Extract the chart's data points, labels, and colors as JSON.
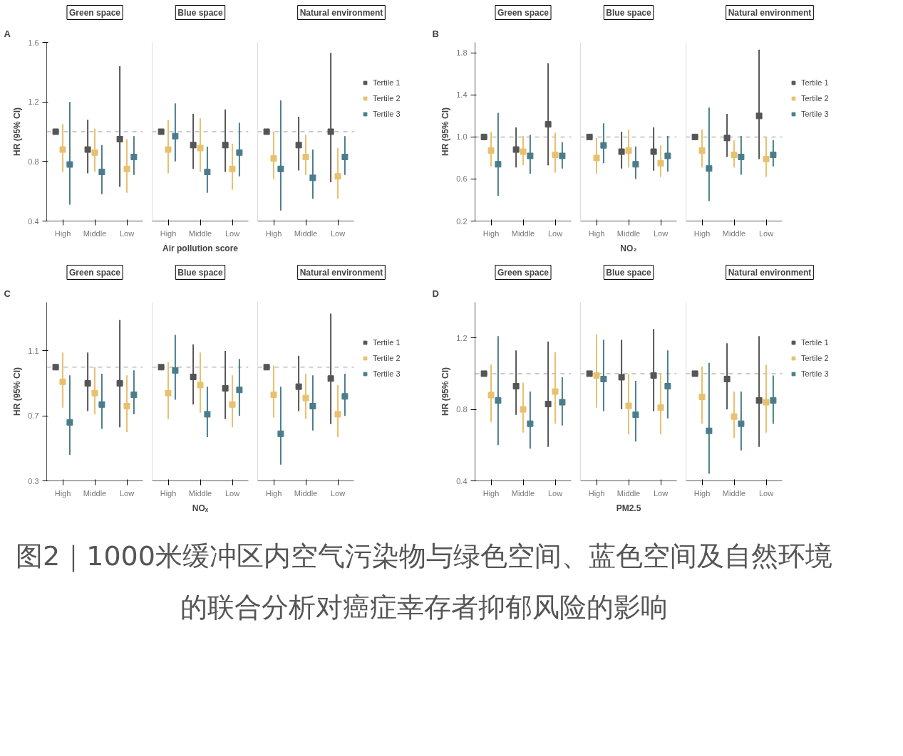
{
  "chart_data": [
    {
      "type": "scatter",
      "title": "Green space",
      "ylabel": "HR (95% CI)",
      "annotations": [
        "A"
      ],
      "categories": [
        "High",
        "Middle",
        "Low"
      ],
      "marker": "square",
      "grid": false,
      "ylim": [
        0.4,
        1.6
      ],
      "yticks": [
        0.4,
        0.8,
        1.2,
        1.6
      ],
      "ref_lines": [
        {
          "axis": "y",
          "value": 1,
          "color": "#bbbbbb",
          "line_style": "dashed"
        }
      ],
      "series": [
        {
          "color": "#555555",
          "values": [
            1.0,
            0.88,
            0.95
          ],
          "errors": [
            null,
            [
              0.72,
              1.08
            ],
            [
              0.63,
              1.44
            ]
          ]
        },
        {
          "color": "#e8c16f",
          "values": [
            0.88,
            0.86,
            0.75
          ],
          "errors": [
            [
              0.73,
              1.05
            ],
            [
              0.73,
              1.02
            ],
            [
              0.59,
              0.95
            ]
          ]
        },
        {
          "color": "#4a7d8c",
          "values": [
            0.78,
            0.73,
            0.83
          ],
          "errors": [
            [
              0.51,
              1.2
            ],
            [
              0.58,
              0.91
            ],
            [
              0.71,
              0.97
            ]
          ]
        }
      ]
    },
    {
      "type": "scatter",
      "title": "Blue space",
      "xlabel": "Air pollution score",
      "categories": [
        "High",
        "Middle",
        "Low"
      ],
      "marker": "square",
      "grid": false,
      "tick_labels": "x",
      "ylim": [
        0.4,
        1.6
      ],
      "ref_lines": [
        {
          "axis": "y",
          "value": 1,
          "color": "#bbbbbb",
          "line_style": "dashed"
        }
      ],
      "series": [
        {
          "color": "#555555",
          "values": [
            1.0,
            0.91,
            0.91
          ],
          "errors": [
            null,
            [
              0.75,
              1.12
            ],
            [
              0.73,
              1.15
            ]
          ]
        },
        {
          "color": "#e8c16f",
          "values": [
            0.88,
            0.89,
            0.75
          ],
          "errors": [
            [
              0.72,
              1.08
            ],
            [
              0.73,
              1.09
            ],
            [
              0.61,
              0.92
            ]
          ]
        },
        {
          "color": "#4a7d8c",
          "values": [
            0.97,
            0.73,
            0.86
          ],
          "errors": [
            [
              0.8,
              1.19
            ],
            [
              0.59,
              0.9
            ],
            [
              0.7,
              1.06
            ]
          ]
        }
      ]
    },
    {
      "type": "scatter",
      "title": "Natural environment",
      "categories": [
        "High",
        "Middle",
        "Low"
      ],
      "marker": "square",
      "grid": false,
      "tick_labels": "x",
      "legend": "right",
      "ylim": [
        0.4,
        1.6
      ],
      "ref_lines": [
        {
          "axis": "y",
          "value": 1,
          "color": "#bbbbbb",
          "line_style": "dashed"
        }
      ],
      "series": [
        {
          "name": "Tertile 1",
          "color": "#555555",
          "values": [
            1.0,
            0.91,
            1.0
          ],
          "errors": [
            null,
            [
              0.74,
              1.1
            ],
            [
              0.66,
              1.53
            ]
          ]
        },
        {
          "name": "Tertile 2",
          "color": "#e8c16f",
          "values": [
            0.82,
            0.83,
            0.7
          ],
          "errors": [
            [
              0.68,
              1.0
            ],
            [
              0.71,
              0.98
            ],
            [
              0.55,
              0.89
            ]
          ]
        },
        {
          "name": "Tertile 3",
          "color": "#4a7d8c",
          "values": [
            0.75,
            0.69,
            0.83
          ],
          "errors": [
            [
              0.47,
              1.21
            ],
            [
              0.55,
              0.88
            ],
            [
              0.71,
              0.97
            ]
          ]
        }
      ]
    },
    {
      "type": "scatter",
      "title": "Green space",
      "ylabel": "HR (95% CI)",
      "annotations": [
        "B"
      ],
      "categories": [
        "High",
        "Middle",
        "Low"
      ],
      "marker": "square",
      "grid": false,
      "ylim": [
        0.2,
        1.9
      ],
      "yticks": [
        0.2,
        0.6,
        {
          "value": 1,
          "label": "1.0"
        },
        1.4,
        1.8
      ],
      "ref_lines": [
        {
          "axis": "y",
          "value": 1,
          "color": "#bbbbbb",
          "line_style": "dashed"
        }
      ],
      "series": [
        {
          "color": "#555555",
          "values": [
            1.0,
            0.88,
            1.12
          ],
          "errors": [
            null,
            [
              0.71,
              1.09
            ],
            [
              0.73,
              1.7
            ]
          ]
        },
        {
          "color": "#e8c16f",
          "values": [
            0.87,
            0.86,
            0.83
          ],
          "errors": [
            [
              0.72,
              1.05
            ],
            [
              0.73,
              1.01
            ],
            [
              0.66,
              1.04
            ]
          ]
        },
        {
          "color": "#4a7d8c",
          "values": [
            0.74,
            0.82,
            0.82
          ],
          "errors": [
            [
              0.44,
              1.23
            ],
            [
              0.65,
              1.02
            ],
            [
              0.7,
              0.95
            ]
          ]
        }
      ]
    },
    {
      "type": "scatter",
      "title": "Blue space",
      "xlabel": "NO₂",
      "categories": [
        "High",
        "Middle",
        "Low"
      ],
      "marker": "square",
      "grid": false,
      "tick_labels": "x",
      "ylim": [
        0.2,
        1.9
      ],
      "ref_lines": [
        {
          "axis": "y",
          "value": 1,
          "color": "#bbbbbb",
          "line_style": "dashed"
        }
      ],
      "series": [
        {
          "color": "#555555",
          "values": [
            1.0,
            0.86,
            0.86
          ],
          "errors": [
            null,
            [
              0.7,
              1.05
            ],
            [
              0.68,
              1.09
            ]
          ]
        },
        {
          "color": "#e8c16f",
          "values": [
            0.8,
            0.87,
            0.75
          ],
          "errors": [
            [
              0.65,
              0.99
            ],
            [
              0.71,
              1.07
            ],
            [
              0.62,
              0.92
            ]
          ]
        },
        {
          "color": "#4a7d8c",
          "values": [
            0.92,
            0.74,
            0.82
          ],
          "errors": [
            [
              0.75,
              1.13
            ],
            [
              0.6,
              0.91
            ],
            [
              0.67,
              1.01
            ]
          ]
        }
      ]
    },
    {
      "type": "scatter",
      "title": "Natural environment",
      "categories": [
        "High",
        "Middle",
        "Low"
      ],
      "marker": "square",
      "grid": false,
      "tick_labels": "x",
      "legend": "right",
      "ylim": [
        0.2,
        1.9
      ],
      "ref_lines": [
        {
          "axis": "y",
          "value": 1,
          "color": "#bbbbbb",
          "line_style": "dashed"
        }
      ],
      "series": [
        {
          "name": "Tertile 1",
          "color": "#555555",
          "values": [
            1.0,
            0.99,
            1.2
          ],
          "errors": [
            null,
            [
              0.81,
              1.22
            ],
            [
              0.79,
              1.83
            ]
          ]
        },
        {
          "name": "Tertile 2",
          "color": "#e8c16f",
          "values": [
            0.87,
            0.83,
            0.79
          ],
          "errors": [
            [
              0.71,
              1.07
            ],
            [
              0.71,
              0.97
            ],
            [
              0.62,
              1.0
            ]
          ]
        },
        {
          "name": "Tertile 3",
          "color": "#4a7d8c",
          "values": [
            0.7,
            0.81,
            0.83
          ],
          "errors": [
            [
              0.39,
              1.28
            ],
            [
              0.64,
              1.01
            ],
            [
              0.72,
              0.97
            ]
          ]
        }
      ]
    },
    {
      "type": "scatter",
      "title": "Green space",
      "ylabel": "HR (95% CI)",
      "annotations": [
        "C"
      ],
      "categories": [
        "High",
        "Middle",
        "Low"
      ],
      "marker": "square",
      "grid": false,
      "ylim": [
        0.3,
        1.4
      ],
      "yticks": [
        0.3,
        0.7,
        1.1
      ],
      "ref_lines": [
        {
          "axis": "y",
          "value": 1,
          "color": "#bbbbbb",
          "line_style": "dashed"
        }
      ],
      "series": [
        {
          "color": "#555555",
          "values": [
            1.0,
            0.9,
            0.9
          ],
          "errors": [
            null,
            [
              0.73,
              1.09
            ],
            [
              0.63,
              1.29
            ]
          ]
        },
        {
          "color": "#e8c16f",
          "values": [
            0.91,
            0.84,
            0.76
          ],
          "errors": [
            [
              0.75,
              1.09
            ],
            [
              0.71,
              1.0
            ],
            [
              0.6,
              0.95
            ]
          ]
        },
        {
          "color": "#4a7d8c",
          "values": [
            0.66,
            0.77,
            0.83
          ],
          "errors": [
            [
              0.46,
              0.95
            ],
            [
              0.62,
              0.96
            ],
            [
              0.71,
              0.98
            ]
          ]
        }
      ]
    },
    {
      "type": "scatter",
      "title": "Blue space",
      "xlabel": "NOₓ",
      "categories": [
        "High",
        "Middle",
        "Low"
      ],
      "marker": "square",
      "grid": false,
      "tick_labels": "x",
      "ylim": [
        0.3,
        1.4
      ],
      "ref_lines": [
        {
          "axis": "y",
          "value": 1,
          "color": "#bbbbbb",
          "line_style": "dashed"
        }
      ],
      "series": [
        {
          "color": "#555555",
          "values": [
            1.0,
            0.94,
            0.87
          ],
          "errors": [
            null,
            [
              0.77,
              1.14
            ],
            [
              0.68,
              1.1
            ]
          ]
        },
        {
          "color": "#e8c16f",
          "values": [
            0.84,
            0.89,
            0.77
          ],
          "errors": [
            [
              0.68,
              1.03
            ],
            [
              0.72,
              1.09
            ],
            [
              0.63,
              0.95
            ]
          ]
        },
        {
          "color": "#4a7d8c",
          "values": [
            0.98,
            0.71,
            0.86
          ],
          "errors": [
            [
              0.8,
              1.2
            ],
            [
              0.57,
              0.88
            ],
            [
              0.7,
              1.05
            ]
          ]
        }
      ]
    },
    {
      "type": "scatter",
      "title": "Natural environment",
      "categories": [
        "High",
        "Middle",
        "Low"
      ],
      "marker": "square",
      "grid": false,
      "tick_labels": "x",
      "legend": "right",
      "ylim": [
        0.3,
        1.4
      ],
      "ref_lines": [
        {
          "axis": "y",
          "value": 1,
          "color": "#bbbbbb",
          "line_style": "dashed"
        }
      ],
      "series": [
        {
          "name": "Tertile 1",
          "color": "#555555",
          "values": [
            1.0,
            0.88,
            0.93
          ],
          "errors": [
            null,
            [
              0.73,
              1.07
            ],
            [
              0.65,
              1.33
            ]
          ]
        },
        {
          "name": "Tertile 2",
          "color": "#e8c16f",
          "values": [
            0.83,
            0.81,
            0.71
          ],
          "errors": [
            [
              0.69,
              1.01
            ],
            [
              0.68,
              0.96
            ],
            [
              0.57,
              0.89
            ]
          ]
        },
        {
          "name": "Tertile 3",
          "color": "#4a7d8c",
          "values": [
            0.59,
            0.76,
            0.82
          ],
          "errors": [
            [
              0.4,
              0.88
            ],
            [
              0.61,
              0.95
            ],
            [
              0.7,
              0.96
            ]
          ]
        }
      ]
    },
    {
      "type": "scatter",
      "title": "Green space",
      "ylabel": "HR (95% CI)",
      "annotations": [
        "D"
      ],
      "categories": [
        "High",
        "Middle",
        "Low"
      ],
      "marker": "square",
      "grid": false,
      "ylim": [
        0.4,
        1.4
      ],
      "yticks": [
        0.4,
        0.8,
        1.2
      ],
      "ref_lines": [
        {
          "axis": "y",
          "value": 1,
          "color": "#bbbbbb",
          "line_style": "dashed"
        }
      ],
      "series": [
        {
          "color": "#555555",
          "values": [
            1.0,
            0.93,
            0.83
          ],
          "errors": [
            null,
            [
              0.77,
              1.13
            ],
            [
              0.59,
              1.18
            ]
          ]
        },
        {
          "color": "#e8c16f",
          "values": [
            0.88,
            0.8,
            0.9
          ],
          "errors": [
            [
              0.73,
              1.05
            ],
            [
              0.67,
              0.95
            ],
            [
              0.72,
              1.12
            ]
          ]
        },
        {
          "color": "#4a7d8c",
          "values": [
            0.85,
            0.72,
            0.84
          ],
          "errors": [
            [
              0.6,
              1.21
            ],
            [
              0.58,
              0.9
            ],
            [
              0.71,
              0.98
            ]
          ]
        }
      ]
    },
    {
      "type": "scatter",
      "title": "Blue space",
      "xlabel": "PM2.5",
      "categories": [
        "High",
        "Middle",
        "Low"
      ],
      "marker": "square",
      "grid": false,
      "tick_labels": "x",
      "ylim": [
        0.4,
        1.4
      ],
      "ref_lines": [
        {
          "axis": "y",
          "value": 1,
          "color": "#bbbbbb",
          "line_style": "dashed"
        }
      ],
      "series": [
        {
          "color": "#555555",
          "values": [
            1.0,
            0.98,
            0.99
          ],
          "errors": [
            null,
            [
              0.8,
              1.19
            ],
            [
              0.79,
              1.25
            ]
          ]
        },
        {
          "color": "#e8c16f",
          "values": [
            0.99,
            0.82,
            0.81
          ],
          "errors": [
            [
              0.81,
              1.22
            ],
            [
              0.66,
              1.0
            ],
            [
              0.66,
              1.0
            ]
          ]
        },
        {
          "color": "#4a7d8c",
          "values": [
            0.97,
            0.77,
            0.93
          ],
          "errors": [
            [
              0.79,
              1.19
            ],
            [
              0.62,
              0.96
            ],
            [
              0.75,
              1.13
            ]
          ]
        }
      ]
    },
    {
      "type": "scatter",
      "title": "Natural environment",
      "annotations": [
        "图2｜1000米缓冲区内空气污染物与绿色空间、蓝色空间及自然环境的联合分析对癌症幸存者抑郁风险的影响"
      ],
      "categories": [
        "High",
        "Middle",
        "Low"
      ],
      "marker": "square",
      "grid": false,
      "tick_labels": "x",
      "legend": "right",
      "ylim": [
        0.4,
        1.4
      ],
      "ref_lines": [
        {
          "axis": "y",
          "value": 1,
          "color": "#bbbbbb",
          "line_style": "dashed"
        }
      ],
      "series": [
        {
          "name": "Tertile 1",
          "color": "#555555",
          "values": [
            1.0,
            0.97,
            0.85
          ],
          "errors": [
            null,
            [
              0.8,
              1.17
            ],
            [
              0.59,
              1.21
            ]
          ]
        },
        {
          "name": "Tertile 2",
          "color": "#e8c16f",
          "values": [
            0.87,
            0.76,
            0.84
          ],
          "errors": [
            [
              0.72,
              1.04
            ],
            [
              0.64,
              0.9
            ],
            [
              0.67,
              1.05
            ]
          ]
        },
        {
          "name": "Tertile 3",
          "color": "#4a7d8c",
          "values": [
            0.68,
            0.72,
            0.85
          ],
          "errors": [
            [
              0.44,
              1.06
            ],
            [
              0.57,
              0.9
            ],
            [
              0.72,
              0.99
            ]
          ]
        }
      ]
    }
  ]
}
